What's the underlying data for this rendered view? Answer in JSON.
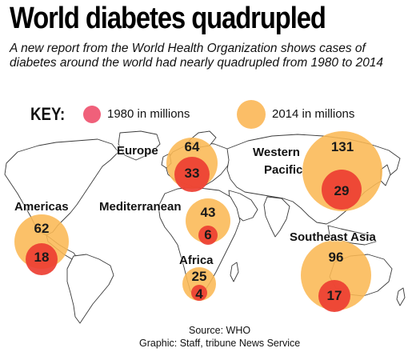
{
  "header": {
    "title": "World diabetes quadrupled",
    "subtitle": "A new report from the World Health Organization shows cases of diabetes around the world had nearly quadrupled from 1980 to 2014"
  },
  "key": {
    "label": "KEY:",
    "item_1980": "1980 in millions",
    "item_2014": "2014 in millions",
    "color_1980": "#ed3e32",
    "color_2014": "#fbb854"
  },
  "regions": [
    {
      "id": "europe",
      "name": "Europe",
      "v1980": "33",
      "v2014": "64"
    },
    {
      "id": "western-pacific",
      "name_line1": "Western",
      "name_line2": "Pacific",
      "v1980": "29",
      "v2014": "131"
    },
    {
      "id": "americas",
      "name": "Americas",
      "v1980": "18",
      "v2014": "62"
    },
    {
      "id": "mediterranean",
      "name": "Mediterranean",
      "v1980": "6",
      "v2014": "43"
    },
    {
      "id": "africa",
      "name": "Africa",
      "v1980": "4",
      "v2014": "25"
    },
    {
      "id": "southeast-asia",
      "name": "Southeast Asia",
      "v1980": "17",
      "v2014": "96"
    }
  ],
  "credits": {
    "source": "Source: WHO",
    "graphic": "Graphic: Staff, tribune News Service"
  }
}
